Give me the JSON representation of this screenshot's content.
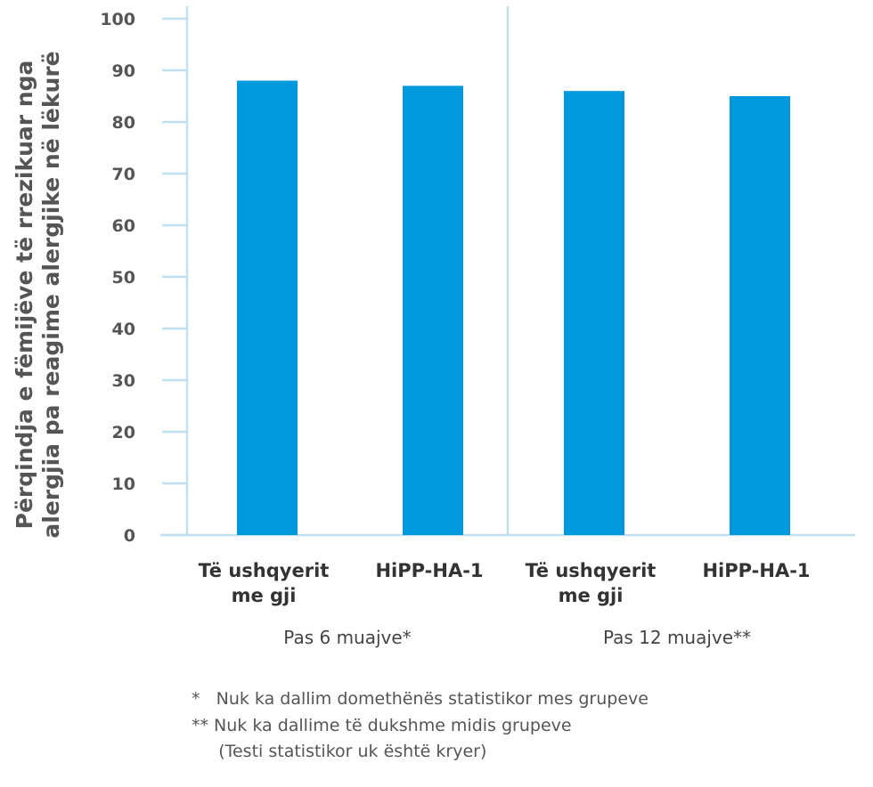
{
  "chart_data": {
    "type": "bar",
    "ylabel": [
      "Përqindja e fëmijëve të rrezikuar nga",
      "alergjia pa reagime alergjike në lëkurë"
    ],
    "ylim": [
      0,
      100
    ],
    "yticks": [
      "0",
      "10",
      "20",
      "30",
      "40",
      "50",
      "60",
      "70",
      "80",
      "90",
      "100"
    ],
    "grid": false,
    "bar_color": "#0099dd",
    "axis_color": "#bfe0f0",
    "groups": [
      {
        "label": "Pas 6 muajve*",
        "categories": [
          {
            "lines": [
              "Të ushqyerit",
              "me gji"
            ],
            "value": 88
          },
          {
            "lines": [
              "HiPP-HA-1"
            ],
            "value": 87
          }
        ]
      },
      {
        "label": "Pas 12 muajve**",
        "categories": [
          {
            "lines": [
              "Të ushqyerit",
              "me gji"
            ],
            "value": 86
          },
          {
            "lines": [
              "HiPP-HA-1"
            ],
            "value": 85
          }
        ]
      }
    ]
  },
  "footnotes": [
    "*   Nuk ka dallim domethënës statistikor mes grupeve",
    "** Nuk ka dallime të dukshme midis grupeve",
    "     (Testi statistikor uk është kryer)"
  ]
}
